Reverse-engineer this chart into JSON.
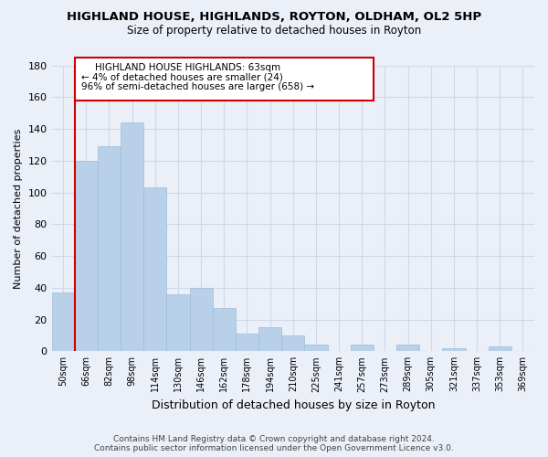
{
  "title": "HIGHLAND HOUSE, HIGHLANDS, ROYTON, OLDHAM, OL2 5HP",
  "subtitle": "Size of property relative to detached houses in Royton",
  "xlabel": "Distribution of detached houses by size in Royton",
  "ylabel": "Number of detached properties",
  "bin_labels": [
    "50sqm",
    "66sqm",
    "82sqm",
    "98sqm",
    "114sqm",
    "130sqm",
    "146sqm",
    "162sqm",
    "178sqm",
    "194sqm",
    "210sqm",
    "225sqm",
    "241sqm",
    "257sqm",
    "273sqm",
    "289sqm",
    "305sqm",
    "321sqm",
    "337sqm",
    "353sqm",
    "369sqm"
  ],
  "bar_values": [
    37,
    120,
    129,
    144,
    103,
    36,
    40,
    27,
    11,
    15,
    10,
    4,
    0,
    4,
    0,
    4,
    0,
    2,
    0,
    3,
    0
  ],
  "bar_color": "#b8d0e8",
  "bar_edge_color": "#a0bcd8",
  "highlight_color": "#cc0000",
  "ylim": [
    0,
    180
  ],
  "yticks": [
    0,
    20,
    40,
    60,
    80,
    100,
    120,
    140,
    160,
    180
  ],
  "annotation_title": "HIGHLAND HOUSE HIGHLANDS: 63sqm",
  "annotation_line1": "← 4% of detached houses are smaller (24)",
  "annotation_line2": "96% of semi-detached houses are larger (658) →",
  "footer_line1": "Contains HM Land Registry data © Crown copyright and database right 2024.",
  "footer_line2": "Contains public sector information licensed under the Open Government Licence v3.0.",
  "bg_color": "#eaeff8",
  "plot_bg_color": "#eaeff8",
  "grid_color": "#d0d8e8"
}
